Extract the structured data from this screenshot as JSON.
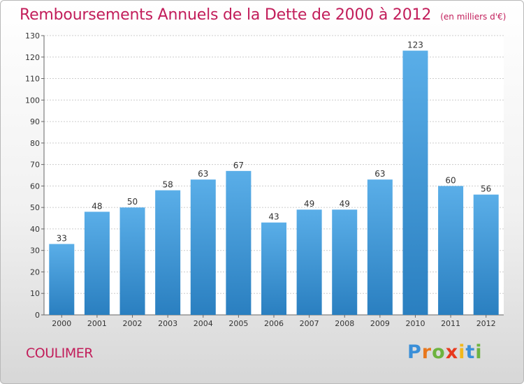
{
  "chart_data": {
    "type": "bar",
    "title": "Remboursements Annuels de la Dette de 2000 à 2012",
    "unit_label": "(en milliers d'€)",
    "categories": [
      "2000",
      "2001",
      "2002",
      "2003",
      "2004",
      "2005",
      "2006",
      "2007",
      "2008",
      "2009",
      "2010",
      "2011",
      "2012"
    ],
    "values": [
      33,
      48,
      50,
      58,
      63,
      67,
      43,
      49,
      49,
      63,
      123,
      60,
      56
    ],
    "ylim": [
      0,
      130
    ],
    "yticks": [
      0,
      10,
      20,
      30,
      40,
      50,
      60,
      70,
      80,
      90,
      100,
      110,
      120,
      130
    ],
    "grid": true,
    "bar_color_top": "#5aaee8",
    "bar_color_bottom": "#2a7fc0"
  },
  "commune": "COULIMER",
  "logo": {
    "letters": [
      {
        "char": "P",
        "color": "#3a8fd8"
      },
      {
        "char": "r",
        "color": "#e8781e"
      },
      {
        "char": "o",
        "color": "#6db33f"
      },
      {
        "char": "x",
        "color": "#e8391e"
      },
      {
        "char": "i",
        "color": "#f2b81c"
      },
      {
        "char": "t",
        "color": "#3a8fd8"
      },
      {
        "char": "i",
        "color": "#6db33f"
      }
    ]
  },
  "colors": {
    "accent": "#c21d5a",
    "grid": "#cccccc"
  }
}
